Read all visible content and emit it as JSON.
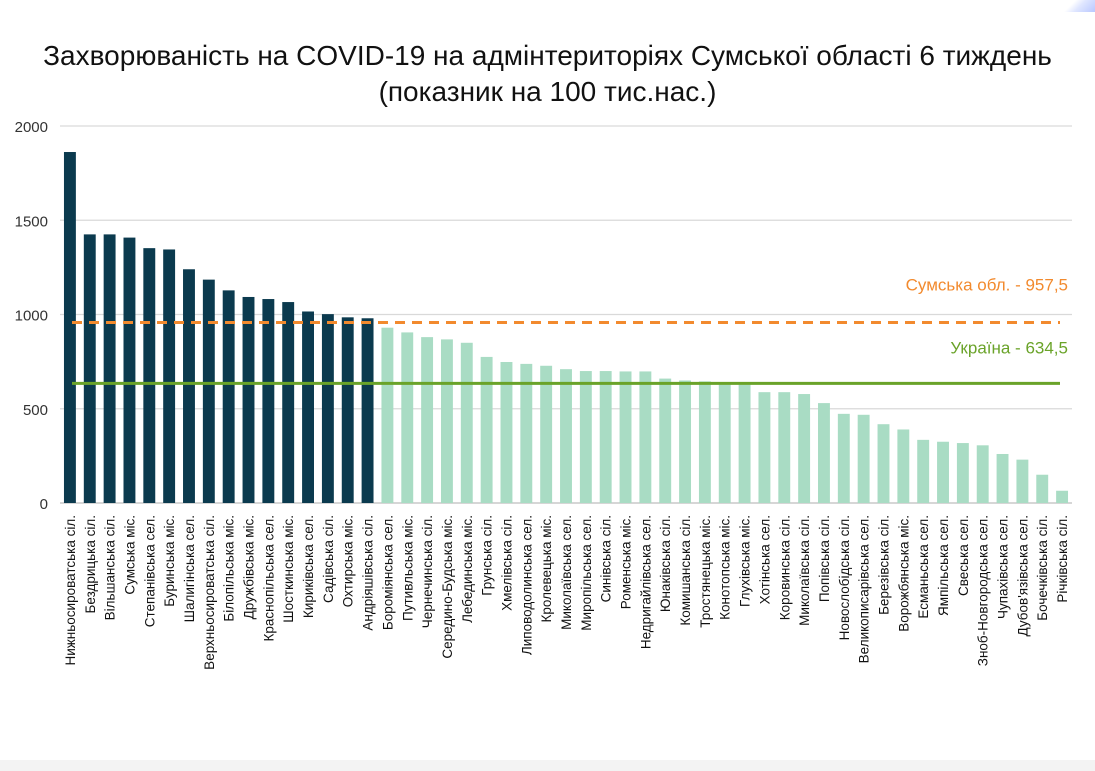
{
  "chart_data": {
    "type": "bar",
    "title": "Захворюваність на COVID-19 на адмінтериторіях Сумської області 6 тиждень",
    "subtitle": "(показник на 100 тис.нас.)",
    "xlabel": "",
    "ylabel": "",
    "ylim": [
      0,
      2000
    ],
    "yticks": [
      0,
      500,
      1000,
      1500,
      2000
    ],
    "grid": true,
    "colors": {
      "above_region": "#0b3a4e",
      "below_region": "#a9dcc4",
      "region_line": "#f28a2e",
      "ukraine_line": "#6aa329"
    },
    "categories": [
      "Нижньосироватська сіл.",
      "Бездрицька сіл.",
      "Вільшанська сіл.",
      "Сумська міс.",
      "Степанівська сел.",
      "Буринська міс.",
      "Шалигінська сел.",
      "Верхньосироватська сіл.",
      "Білопільська міс.",
      "Дружбівська міс.",
      "Краснопільська сел.",
      "Шосткинська міс.",
      "Кириківська сел.",
      "Садівська сіл.",
      "Охтирська міс.",
      "Андріяшівська сіл.",
      "Бороміянська сел.",
      "Путивльська міс.",
      "Чернечинська сіл.",
      "Середино-Будська міс.",
      "Лебединська міс.",
      "Грунська сіл.",
      "Хмелівська сіл.",
      "Липоводолинська сел.",
      "Кролевецька міс.",
      "Миколаївська сел.",
      "Миропільська сел.",
      "Синівська сіл.",
      "Роменська міс.",
      "Недригайлівська сел.",
      "Юнаківська сіл.",
      "Комишанська сіл.",
      "Тростянецька міс.",
      "Конотопська міс.",
      "Глухівська міс.",
      "Хотінська сел.",
      "Коровинська сіл.",
      "Миколаївська сіл.",
      "Попівська сіл.",
      "Новослобідська сіл.",
      "Великописарівська сел.",
      "Березівська сіл.",
      "Ворожбянська міс.",
      "Есманьська сел.",
      "Ямпільська сел.",
      "Свеська сел.",
      "Зноб-Новгородська сел.",
      "Чупахівська сел.",
      "Дубов'язівська сел.",
      "Бочечківська сіл.",
      "Річківська сіл."
    ],
    "values": [
      1862,
      1425,
      1425,
      1408,
      1352,
      1345,
      1240,
      1185,
      1128,
      1093,
      1082,
      1066,
      1016,
      1002,
      985,
      980,
      930,
      905,
      880,
      868,
      850,
      775,
      748,
      738,
      728,
      710,
      700,
      700,
      698,
      698,
      660,
      650,
      645,
      628,
      628,
      588,
      588,
      578,
      530,
      473,
      468,
      418,
      390,
      335,
      325,
      318,
      306,
      260,
      230,
      150,
      65
    ],
    "reference_lines": [
      {
        "label": "Сумська обл. - 957,5",
        "value": 957.5,
        "color": "#f28a2e",
        "style": "dashed"
      },
      {
        "label": "Україна - 634,5",
        "value": 634.5,
        "color": "#6aa329",
        "style": "solid"
      }
    ]
  }
}
